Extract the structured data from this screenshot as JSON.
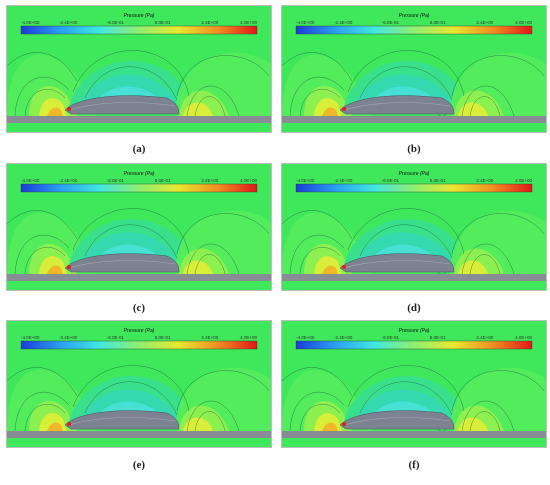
{
  "figure": {
    "colorbar": {
      "title": "Pressure (Pa)",
      "ticks": [
        "-4.0E+00",
        "-2.4E+00",
        "-8.0E-01",
        "8.0E-01",
        "2.4E+00",
        "4.0E+00"
      ],
      "colors": [
        "#1a3cd8",
        "#2aa0f0",
        "#40e8e0",
        "#8ef070",
        "#e8e830",
        "#f09020",
        "#e01818"
      ]
    },
    "panels": [
      {
        "label": "a",
        "caption": "(a)",
        "wake": false
      },
      {
        "label": "b",
        "caption": "(b)",
        "wake": true
      },
      {
        "label": "c",
        "caption": "(c)",
        "wake": false
      },
      {
        "label": "d",
        "caption": "(d)",
        "wake": true
      },
      {
        "label": "e",
        "caption": "(e)",
        "wake": false
      },
      {
        "label": "f",
        "caption": "(f)",
        "wake": true
      }
    ]
  }
}
